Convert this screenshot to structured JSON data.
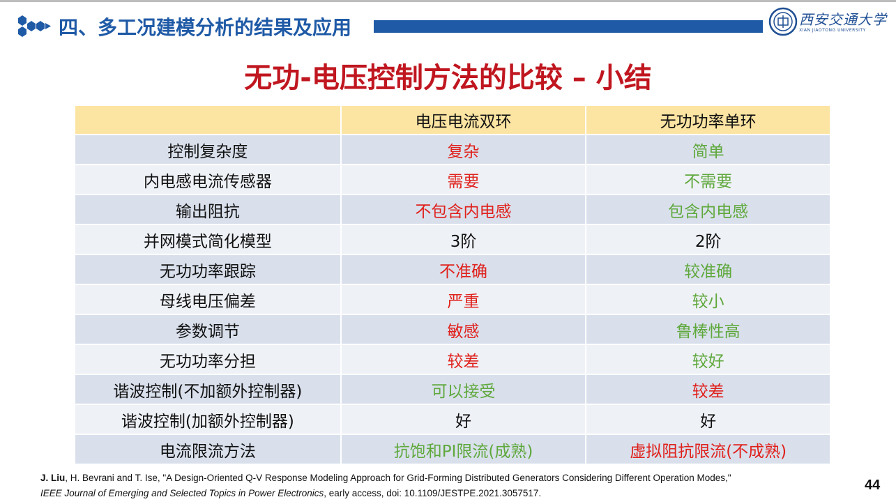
{
  "header": {
    "section_title": "四、多工况建模分析的结果及应用",
    "university_name": "西安交通大学",
    "university_name_en": "XIAN JIAOTONG UNIVERSITY",
    "accent_color": "#1f5aa6"
  },
  "slide": {
    "title": "无功-电压控制方法的比较 – 小结",
    "title_color": "#c0161f"
  },
  "table": {
    "headers": [
      "",
      "电压电流双环",
      "无功功率单环"
    ],
    "rows": [
      {
        "label": "控制复杂度",
        "a": "复杂",
        "a_color": "red",
        "b": "简单",
        "b_color": "green"
      },
      {
        "label": "内电感电流传感器",
        "a": "需要",
        "a_color": "red",
        "b": "不需要",
        "b_color": "green"
      },
      {
        "label": "输出阻抗",
        "a": "不包含内电感",
        "a_color": "red",
        "b": "包含内电感",
        "b_color": "green"
      },
      {
        "label": "并网模式简化模型",
        "a": "3阶",
        "a_color": "black",
        "b": "2阶",
        "b_color": "black"
      },
      {
        "label": "无功功率跟踪",
        "a": "不准确",
        "a_color": "red",
        "b": "较准确",
        "b_color": "green"
      },
      {
        "label": "母线电压偏差",
        "a": "严重",
        "a_color": "red",
        "b": "较小",
        "b_color": "green"
      },
      {
        "label": "参数调节",
        "a": "敏感",
        "a_color": "red",
        "b": "鲁棒性高",
        "b_color": "green"
      },
      {
        "label": "无功功率分担",
        "a": "较差",
        "a_color": "red",
        "b": "较好",
        "b_color": "green"
      },
      {
        "label": "谐波控制(不加额外控制器)",
        "a": "可以接受",
        "a_color": "green",
        "b": "较差",
        "b_color": "red"
      },
      {
        "label": "谐波控制(加额外控制器)",
        "a": "好",
        "a_color": "black",
        "b": "好",
        "b_color": "black"
      },
      {
        "label": "电流限流方法",
        "a": "抗饱和PI限流(成熟)",
        "a_color": "green",
        "b": "虚拟阻抗限流(不成熟)",
        "b_color": "red"
      }
    ],
    "colors": {
      "red": "#e0201b",
      "green": "#5fa83c",
      "black": "#111111",
      "header_bg": "#fce4a2"
    }
  },
  "reference": {
    "author_bold": "J. Liu",
    "line1_rest": ", H. Bevrani and T. Ise, \"A Design-Oriented Q-V Response Modeling Approach for Grid-Forming Distributed Generators Considering Different Operation Modes,\"",
    "journal": "IEEE Journal of Emerging and Selected Topics in Power Electronics",
    "line2_rest": ", early access, doi: 10.1109/JESTPE.2021.3057517."
  },
  "page_number": "44"
}
